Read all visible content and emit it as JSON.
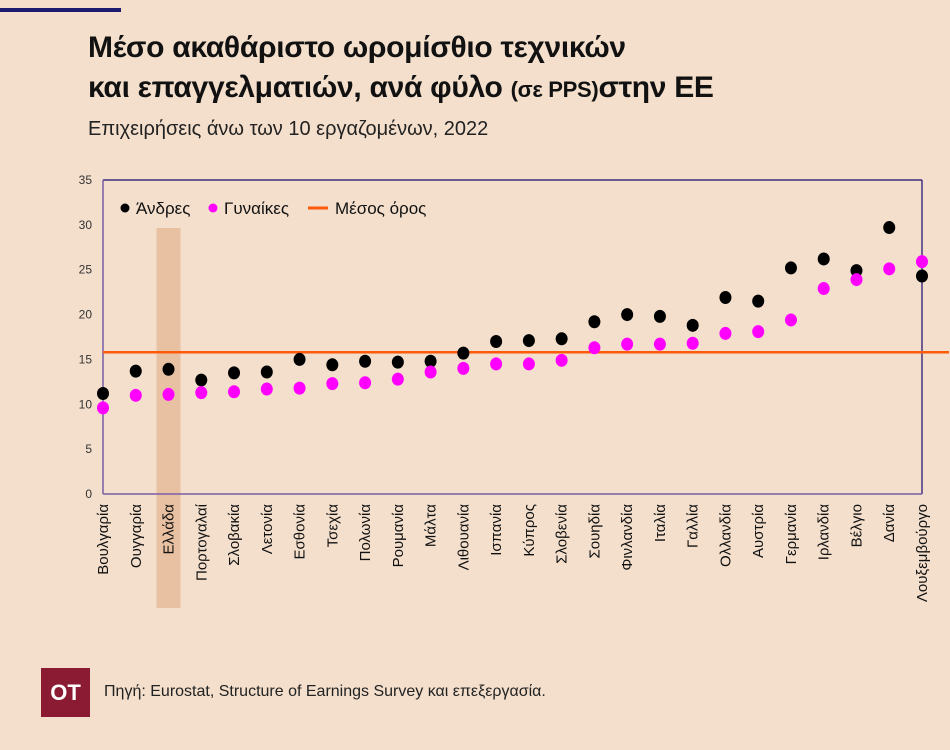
{
  "header": {
    "title_line1": "Μέσο ακαθάριστο ωρομίσθιο τεχνικών",
    "title_line2_main": "και επαγγελματιών, ανά φύλο ",
    "title_line2_small": "(σε PPS)",
    "title_line2_end": "στην ΕΕ",
    "subtitle": "Επιχειρήσεις άνω των 10 εργαζομένων, 2022"
  },
  "footer": {
    "logo": "OT",
    "source": "Πηγή: Eurostat, Structure of Earnings Survey και επεξεργασία."
  },
  "colors": {
    "background": "#f3dfcc",
    "men": "#000000",
    "women": "#ff00ff",
    "mean_line": "#ff5a0a",
    "highlight": "#e8c1a2",
    "axis": "#7b5ea7",
    "frame": "#1a0a6e",
    "logo_bg": "#8b1a33"
  },
  "chart_data": {
    "type": "scatter",
    "title": "Μέσο ακαθάριστο ωρομίσθιο τεχνικών και επαγγελματιών, ανά φύλο (σε PPS) στην ΕΕ",
    "subtitle": "Επιχειρήσεις άνω των 10 εργαζομένων, 2022",
    "xlabel": "",
    "ylabel": "",
    "ylim": [
      0,
      35
    ],
    "yticks": [
      0,
      5,
      10,
      15,
      20,
      25,
      30,
      35
    ],
    "grid": false,
    "legend_position": "top-left",
    "highlighted_category": "Ελλάδα",
    "categories": [
      "Βουλγαρία",
      "Ουγγαρία",
      "Ελλάδα",
      "Πορτογαλαί",
      "Σλοβακία",
      "Λετονία",
      "Εσθονία",
      "Τσεχία",
      "Πολωνία",
      "Ρουμανία",
      "Μάλτα",
      "Λιθουανία",
      "Ισπανία",
      "Κύπρος",
      "Σλοβενία",
      "Σουηδία",
      "Φινλανδία",
      "Ιταλία",
      "Γαλλία",
      "Ολλανδία",
      "Αυστρία",
      "Γερμανία",
      "Ιρλανδία",
      "Βέλγιο",
      "Δανία",
      "Λουξεμβούργο"
    ],
    "series": [
      {
        "name": "Άνδρες",
        "color": "#000000",
        "values": [
          11.2,
          13.7,
          13.9,
          12.7,
          13.5,
          13.6,
          15.0,
          14.4,
          14.8,
          14.7,
          14.8,
          15.7,
          17.0,
          17.1,
          17.3,
          19.2,
          20.0,
          19.8,
          18.8,
          21.9,
          21.5,
          25.2,
          26.2,
          24.9,
          29.7,
          24.3
        ]
      },
      {
        "name": "Γυναίκες",
        "color": "#ff00ff",
        "values": [
          9.6,
          11.0,
          11.1,
          11.3,
          11.4,
          11.7,
          11.8,
          12.3,
          12.4,
          12.8,
          13.6,
          14.0,
          14.5,
          14.5,
          14.9,
          16.3,
          16.7,
          16.7,
          16.8,
          17.9,
          18.1,
          19.4,
          22.9,
          23.9,
          25.1,
          25.9
        ]
      }
    ],
    "reference_lines": [
      {
        "name": "Μέσος όρος",
        "color": "#ff5a0a",
        "value": 15.8
      }
    ],
    "legend": [
      "Άνδρες",
      "Γυναίκες",
      "Μέσος όρος"
    ]
  }
}
